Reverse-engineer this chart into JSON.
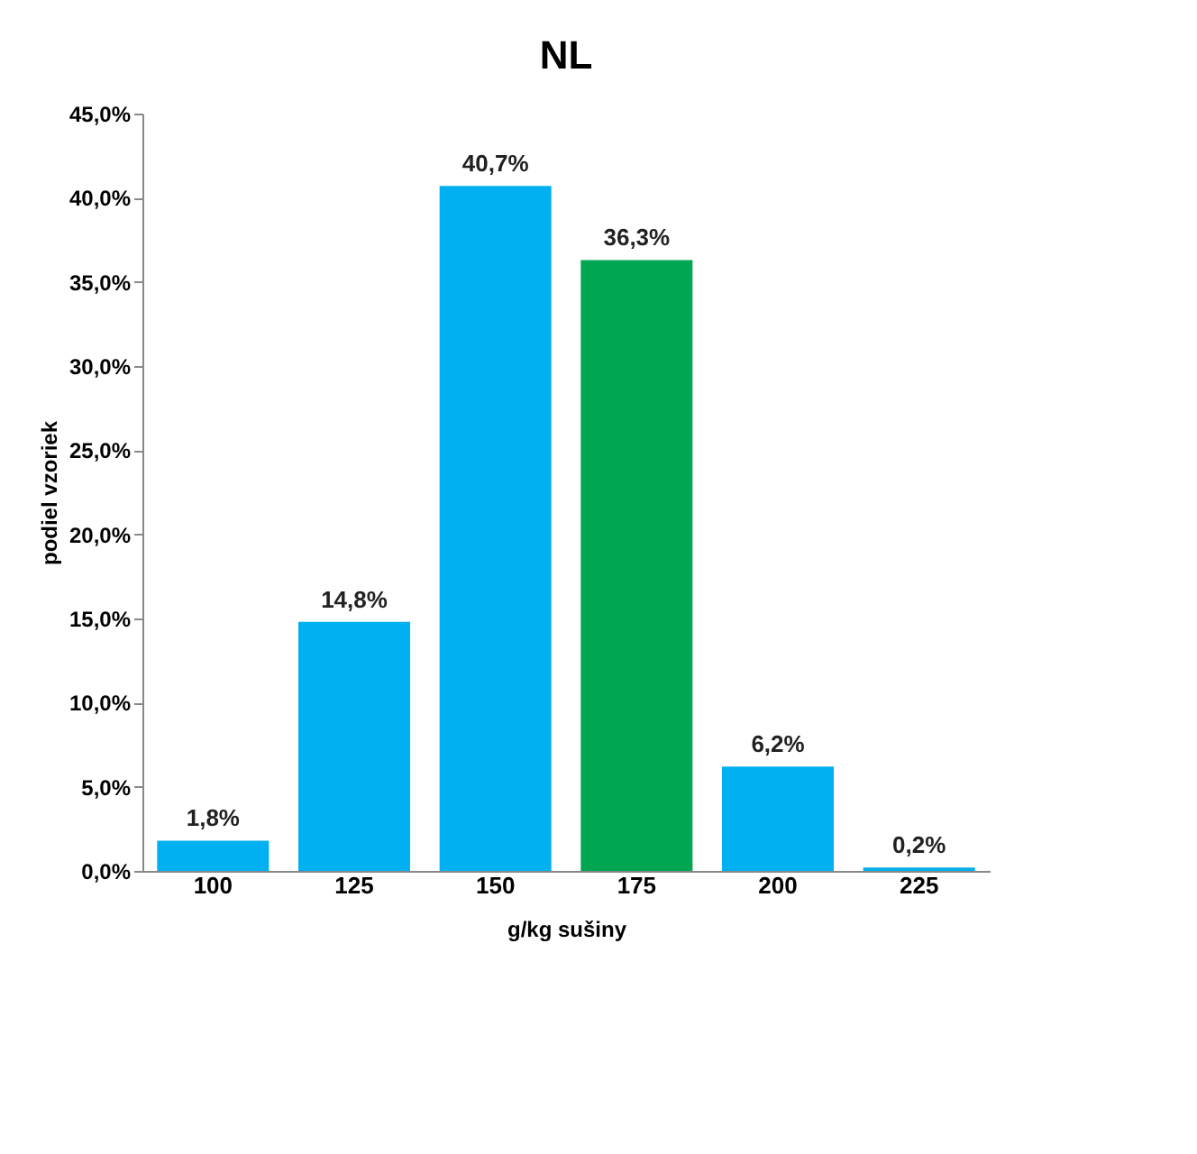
{
  "chart_data": {
    "type": "bar",
    "title": "NL",
    "xlabel": "g/kg sušiny",
    "ylabel": "podiel vzoriek",
    "categories": [
      "100",
      "125",
      "150",
      "175",
      "200",
      "225"
    ],
    "values": [
      1.8,
      14.8,
      40.7,
      36.3,
      6.2,
      0.2
    ],
    "colors": [
      "#00b0f0",
      "#00b0f0",
      "#00b0f0",
      "#00a651",
      "#00b0f0",
      "#00b0f0"
    ],
    "value_labels": [
      "1,8%",
      "14,8%",
      "40,7%",
      "36,3%",
      "6,2%",
      "0,2%"
    ],
    "ylim": [
      0,
      45
    ],
    "yticks": [
      {
        "value": 0,
        "label": "0,0%"
      },
      {
        "value": 5,
        "label": "5,0%"
      },
      {
        "value": 10,
        "label": "10,0%"
      },
      {
        "value": 15,
        "label": "15,0%"
      },
      {
        "value": 20,
        "label": "20,0%"
      },
      {
        "value": 25,
        "label": "25,0%"
      },
      {
        "value": 30,
        "label": "30,0%"
      },
      {
        "value": 35,
        "label": "35,0%"
      },
      {
        "value": 40,
        "label": "40,0%"
      },
      {
        "value": 45,
        "label": "45,0%"
      }
    ],
    "grid": false
  }
}
